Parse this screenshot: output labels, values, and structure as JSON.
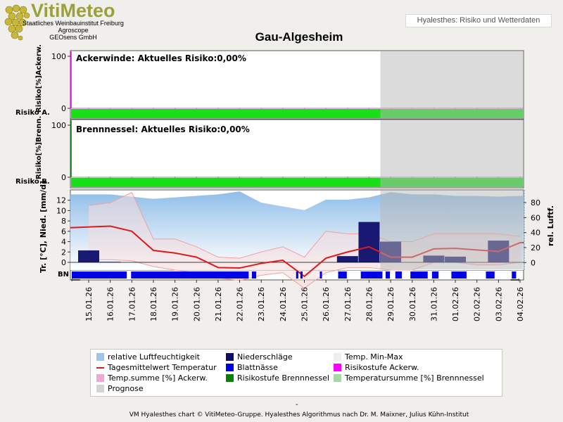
{
  "header": {
    "logo_text": "VitiMeteo",
    "org_lines": [
      "Staatliches Weinbauinstitut Freiburg",
      "Agroscope",
      "GEOsens GmbH"
    ],
    "app_name": "Hyalesthes: Risiko und Wetterdaten"
  },
  "chart_data": {
    "type": "line",
    "title": "Gau-Algesheim",
    "dates": [
      "15.01.26",
      "16.01.26",
      "17.01.26",
      "18.01.26",
      "19.01.26",
      "20.01.26",
      "21.01.26",
      "22.01.26",
      "23.01.26",
      "24.01.26",
      "25.01.26",
      "26.01.26",
      "27.01.26",
      "28.01.26",
      "29.01.26",
      "30.01.26",
      "31.01.26",
      "01.02.26",
      "02.02.26",
      "03.02.26",
      "04.02.26"
    ],
    "forecast_from": "28.01.26",
    "panels": [
      {
        "name": "Ackerwinde",
        "label": "Ackerwinde: Aktuelles Risiko:0,00%",
        "ylabel": "Risiko[%]Ackerw.",
        "risk_label": "Risiko A.",
        "yticks": [
          0,
          100
        ],
        "risk_values": [
          0,
          0,
          0,
          0,
          0,
          0,
          0,
          0,
          0,
          0,
          0,
          0,
          0,
          0,
          0,
          0,
          0,
          0,
          0,
          0,
          0
        ]
      },
      {
        "name": "Brennnessel",
        "label": "Brennnessel: Aktuelles Risiko:0,00%",
        "ylabel": "Risiko[%]Brenn.",
        "risk_label": "Risiko B.",
        "yticks": [
          0,
          100
        ],
        "risk_values": [
          0,
          0,
          0,
          0,
          0,
          0,
          0,
          0,
          0,
          0,
          0,
          0,
          0,
          0,
          0,
          0,
          0,
          0,
          0,
          0,
          0
        ]
      }
    ],
    "weather": {
      "ylabel_left": "Tr. [°C], Nied. [mm/d]",
      "ylabel_right": "rel. Luftf.",
      "yticks_left": [
        0,
        2,
        4,
        6,
        8,
        10,
        12
      ],
      "yticks_right": [
        0,
        20,
        40,
        60,
        80
      ],
      "ylim_left": [
        -1.5,
        14
      ],
      "ylim_right": [
        -10,
        97
      ],
      "humidity": [
        91,
        91,
        88,
        85,
        87,
        89,
        91,
        95,
        80,
        75,
        70,
        84,
        84,
        87,
        94,
        91,
        91,
        89,
        89,
        88,
        89
      ],
      "temp_mean": [
        6.7,
        7.0,
        6.0,
        2.3,
        1.8,
        1.0,
        -1.0,
        -1.1,
        -0.2,
        0.4,
        -2.7,
        0.8,
        2.0,
        3.0,
        1.0,
        1.0,
        2.6,
        2.7,
        2.4,
        2.1,
        3.8
      ],
      "temp_min": [
        0.5,
        0.5,
        0.3,
        -0.8,
        -1.5,
        -2.0,
        -3.0,
        -3.5,
        -2.5,
        -2.0,
        -5.0,
        -2.0,
        -1.0,
        -1.0,
        -1.5,
        -1.5,
        0.0,
        0.0,
        -0.5,
        -0.5,
        0.0
      ],
      "temp_max": [
        11.0,
        11.5,
        13.5,
        4.5,
        4.5,
        3.0,
        1.0,
        0.8,
        2.0,
        3.0,
        1.0,
        6.0,
        5.5,
        5.5,
        4.0,
        4.0,
        5.5,
        5.5,
        5.5,
        5.5,
        5.0
      ],
      "precip": [
        2.3,
        0.1,
        0,
        0,
        0,
        0,
        0,
        0,
        0,
        0,
        0,
        0,
        1.2,
        7.8,
        4.0,
        0,
        1.3,
        1.1,
        0,
        4.2,
        0
      ],
      "leaf_wetness_label": "BN"
    }
  },
  "legend": [
    {
      "label": "relative Luftfeuchtigkeit",
      "color": "#9fc5ec"
    },
    {
      "label": "Niederschläge",
      "color": "#0e0e6a"
    },
    {
      "label": "Temp. Min-Max",
      "color": "#eeeeee"
    },
    {
      "label": "Tagesmittelwert Temperatur",
      "color": "#e01a1a"
    },
    {
      "label": "Blattnässe",
      "color": "#0000e6"
    },
    {
      "label": "Risikostufe Ackerw.",
      "color": "#ff00ff"
    },
    {
      "label": "Temp.summe [%] Ackerw.",
      "color": "#f2a8d4"
    },
    {
      "label": "Risikostufe Brennnessel",
      "color": "#0a7d0a"
    },
    {
      "label": "Temperatursumme [%] Brennnessel",
      "color": "#a8d8a8"
    },
    {
      "label": "Prognose",
      "color": "#d4d4d4"
    }
  ],
  "footer": {
    "dash": "-",
    "text": "VM Hyalesthes chart © VitiMeteo-Gruppe. Hyalesthes Algorithmus nach Dr. M. Maixner, Julius Kühn-Institut"
  }
}
